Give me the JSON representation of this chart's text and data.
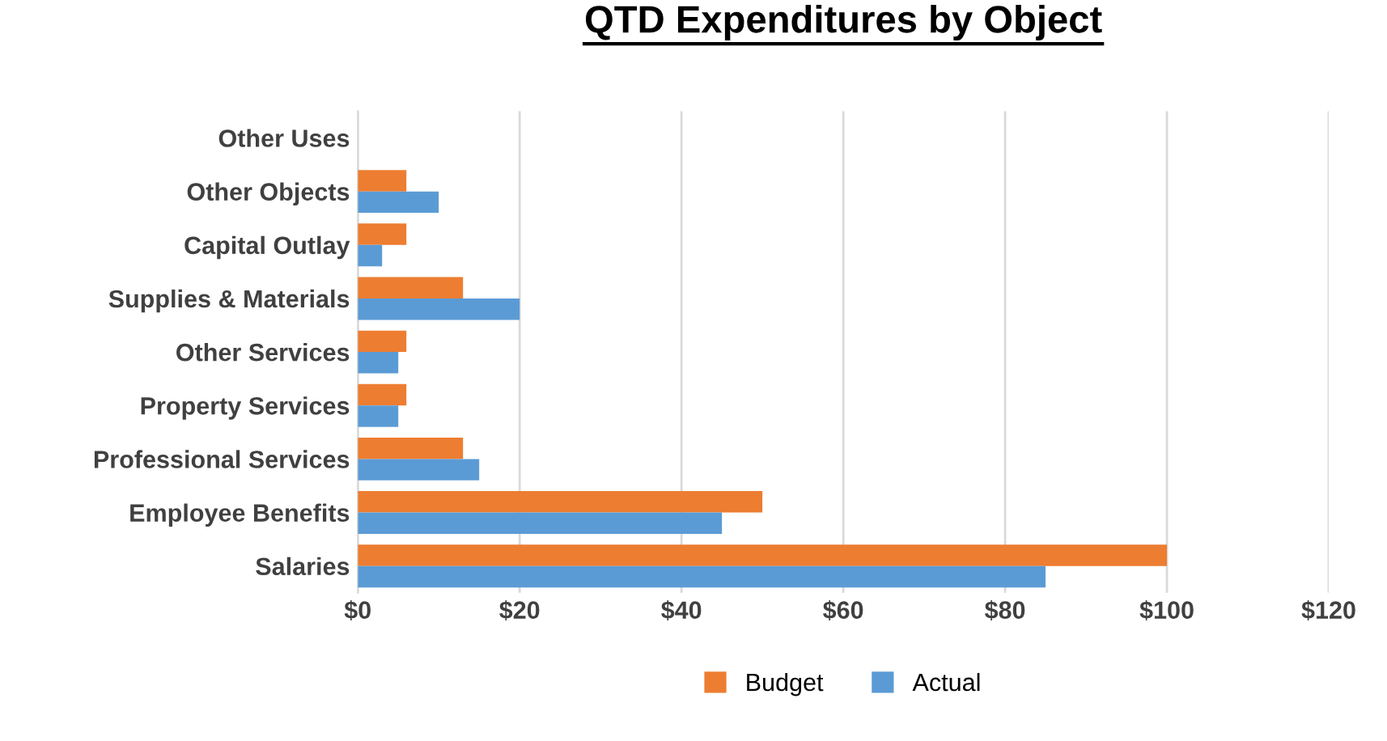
{
  "chart_data": {
    "type": "bar",
    "orientation": "horizontal",
    "title": "QTD Expenditures by Object",
    "categories": [
      "Other Uses",
      "Other Objects",
      "Capital Outlay",
      "Supplies & Materials",
      "Other Services",
      "Property Services",
      "Professional Services",
      "Employee Benefits",
      "Salaries"
    ],
    "series": [
      {
        "name": "Budget",
        "color": "#ed7d31",
        "values": [
          0,
          6,
          6,
          13,
          6,
          6,
          13,
          50,
          100
        ]
      },
      {
        "name": "Actual",
        "color": "#5b9bd5",
        "values": [
          0,
          10,
          3,
          20,
          5,
          5,
          15,
          45,
          85
        ]
      }
    ],
    "xlim": [
      0,
      120
    ],
    "xticks": [
      {
        "value": 0,
        "label": "$0"
      },
      {
        "value": 20,
        "label": "$20"
      },
      {
        "value": 40,
        "label": "$40"
      },
      {
        "value": 60,
        "label": "$60"
      },
      {
        "value": 80,
        "label": "$80"
      },
      {
        "value": 100,
        "label": "$100"
      },
      {
        "value": 120,
        "label": "$120"
      }
    ],
    "grid": "x",
    "legend": "bottom"
  }
}
